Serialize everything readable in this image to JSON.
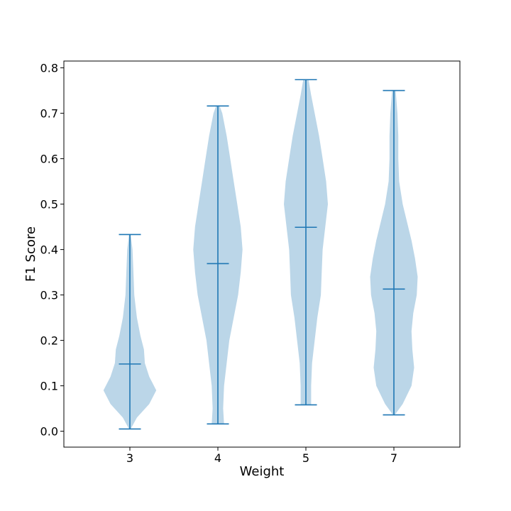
{
  "chart_data": {
    "type": "violin",
    "xlabel": "Weight",
    "ylabel": "F1 Score",
    "categories": [
      "3",
      "4",
      "5",
      "7"
    ],
    "ylim": [
      -0.035,
      0.815
    ],
    "yticks": [
      "0.0",
      "0.1",
      "0.2",
      "0.3",
      "0.4",
      "0.5",
      "0.6",
      "0.7",
      "0.8"
    ],
    "grid": false,
    "colors": {
      "body": "#1f77b4",
      "body_opacity": 0.3,
      "lines": "#1f77b4"
    },
    "series": [
      {
        "category": "3",
        "min": 0.005,
        "median": 0.148,
        "max": 0.433,
        "density": [
          [
            0.005,
            0.01
          ],
          [
            0.03,
            0.08
          ],
          [
            0.06,
            0.22
          ],
          [
            0.09,
            0.3
          ],
          [
            0.12,
            0.22
          ],
          [
            0.15,
            0.17
          ],
          [
            0.18,
            0.16
          ],
          [
            0.21,
            0.12
          ],
          [
            0.25,
            0.08
          ],
          [
            0.3,
            0.05
          ],
          [
            0.35,
            0.04
          ],
          [
            0.4,
            0.03
          ],
          [
            0.433,
            0.01
          ]
        ]
      },
      {
        "category": "4",
        "min": 0.016,
        "median": 0.369,
        "max": 0.716,
        "density": [
          [
            0.016,
            0.07
          ],
          [
            0.05,
            0.06
          ],
          [
            0.1,
            0.07
          ],
          [
            0.15,
            0.1
          ],
          [
            0.2,
            0.13
          ],
          [
            0.25,
            0.18
          ],
          [
            0.3,
            0.23
          ],
          [
            0.35,
            0.26
          ],
          [
            0.4,
            0.28
          ],
          [
            0.45,
            0.26
          ],
          [
            0.5,
            0.22
          ],
          [
            0.55,
            0.18
          ],
          [
            0.6,
            0.14
          ],
          [
            0.65,
            0.1
          ],
          [
            0.7,
            0.05
          ],
          [
            0.716,
            0.02
          ]
        ]
      },
      {
        "category": "5",
        "min": 0.058,
        "median": 0.449,
        "max": 0.774,
        "density": [
          [
            0.058,
            0.06
          ],
          [
            0.1,
            0.06
          ],
          [
            0.15,
            0.07
          ],
          [
            0.2,
            0.1
          ],
          [
            0.25,
            0.13
          ],
          [
            0.3,
            0.17
          ],
          [
            0.35,
            0.18
          ],
          [
            0.4,
            0.19
          ],
          [
            0.45,
            0.22
          ],
          [
            0.5,
            0.25
          ],
          [
            0.55,
            0.23
          ],
          [
            0.6,
            0.19
          ],
          [
            0.65,
            0.15
          ],
          [
            0.7,
            0.1
          ],
          [
            0.74,
            0.06
          ],
          [
            0.774,
            0.03
          ]
        ]
      },
      {
        "category": "7",
        "min": 0.036,
        "median": 0.313,
        "max": 0.75,
        "density": [
          [
            0.036,
            0.01
          ],
          [
            0.06,
            0.1
          ],
          [
            0.1,
            0.2
          ],
          [
            0.14,
            0.23
          ],
          [
            0.18,
            0.21
          ],
          [
            0.22,
            0.2
          ],
          [
            0.26,
            0.22
          ],
          [
            0.3,
            0.26
          ],
          [
            0.34,
            0.27
          ],
          [
            0.38,
            0.24
          ],
          [
            0.42,
            0.2
          ],
          [
            0.46,
            0.15
          ],
          [
            0.5,
            0.1
          ],
          [
            0.55,
            0.06
          ],
          [
            0.6,
            0.05
          ],
          [
            0.65,
            0.05
          ],
          [
            0.7,
            0.04
          ],
          [
            0.75,
            0.02
          ]
        ]
      }
    ]
  }
}
